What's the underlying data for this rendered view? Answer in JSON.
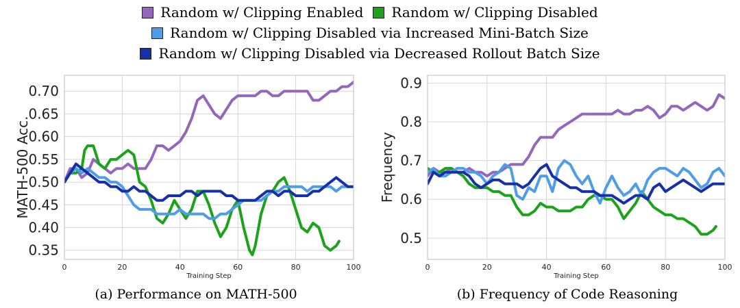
{
  "legend": {
    "rows": [
      [
        {
          "key": "enabled",
          "label": "Random w/ Clipping Enabled"
        },
        {
          "key": "disabled",
          "label": "Random w/ Clipping Disabled"
        }
      ],
      [
        {
          "key": "minibatch",
          "label": "Random w/ Clipping Disabled via Increased Mini-Batch Size"
        }
      ],
      [
        {
          "key": "rollout",
          "label": "Random w/ Clipping Disabled via Decreased Rollout Batch Size"
        }
      ]
    ]
  },
  "colors": {
    "enabled": "#9467bd",
    "disabled": "#1ca31c",
    "minibatch": "#4f9de8",
    "rollout": "#1530a8"
  },
  "chart_data": [
    {
      "type": "line",
      "caption": "(a) Performance on MATH-500",
      "xlabel": "Training Step",
      "ylabel": "MATH-500 Acc.",
      "xlim": [
        0,
        100
      ],
      "ylim": [
        0.33,
        0.735
      ],
      "xticks": [
        0,
        20,
        40,
        60,
        80,
        100
      ],
      "yticks": [
        0.35,
        0.4,
        0.45,
        0.5,
        0.55,
        0.6,
        0.65,
        0.7
      ],
      "ytick_labels": [
        "0.35",
        "0.40",
        "0.45",
        "0.50",
        "0.55",
        "0.60",
        "0.65",
        "0.70"
      ],
      "grid": true,
      "series": [
        {
          "key": "enabled",
          "x": [
            0,
            2,
            4,
            6,
            8,
            10,
            12,
            14,
            16,
            18,
            20,
            22,
            24,
            26,
            28,
            30,
            32,
            34,
            36,
            38,
            40,
            42,
            44,
            46,
            48,
            50,
            52,
            54,
            56,
            58,
            60,
            62,
            64,
            66,
            68,
            70,
            72,
            74,
            76,
            78,
            80,
            82,
            84,
            86,
            88,
            90,
            92,
            94,
            96,
            98,
            100
          ],
          "values": [
            0.5,
            0.53,
            0.53,
            0.51,
            0.52,
            0.55,
            0.54,
            0.53,
            0.52,
            0.53,
            0.53,
            0.54,
            0.53,
            0.53,
            0.53,
            0.55,
            0.58,
            0.58,
            0.57,
            0.58,
            0.59,
            0.61,
            0.64,
            0.68,
            0.69,
            0.67,
            0.65,
            0.64,
            0.66,
            0.68,
            0.69,
            0.69,
            0.69,
            0.69,
            0.7,
            0.7,
            0.69,
            0.69,
            0.7,
            0.7,
            0.7,
            0.7,
            0.7,
            0.68,
            0.68,
            0.69,
            0.7,
            0.7,
            0.71,
            0.71,
            0.72
          ]
        },
        {
          "key": "disabled",
          "x": [
            0,
            2,
            4,
            6,
            7,
            8,
            10,
            12,
            14,
            16,
            18,
            20,
            22,
            24,
            26,
            28,
            30,
            32,
            34,
            36,
            38,
            40,
            42,
            44,
            46,
            48,
            50,
            52,
            54,
            56,
            58,
            60,
            62,
            64,
            65,
            66,
            68,
            70,
            72,
            74,
            76,
            78,
            80,
            82,
            84,
            86,
            88,
            90,
            92,
            94,
            95
          ],
          "values": [
            0.5,
            0.52,
            0.52,
            0.53,
            0.57,
            0.58,
            0.58,
            0.54,
            0.53,
            0.55,
            0.55,
            0.56,
            0.57,
            0.56,
            0.5,
            0.49,
            0.46,
            0.42,
            0.41,
            0.43,
            0.46,
            0.44,
            0.42,
            0.44,
            0.48,
            0.48,
            0.45,
            0.41,
            0.38,
            0.4,
            0.44,
            0.46,
            0.4,
            0.35,
            0.34,
            0.36,
            0.43,
            0.47,
            0.48,
            0.5,
            0.51,
            0.48,
            0.44,
            0.4,
            0.39,
            0.41,
            0.4,
            0.36,
            0.35,
            0.36,
            0.37
          ]
        },
        {
          "key": "minibatch",
          "x": [
            0,
            2,
            4,
            6,
            8,
            10,
            12,
            14,
            16,
            18,
            20,
            22,
            24,
            26,
            28,
            30,
            32,
            34,
            36,
            38,
            40,
            42,
            44,
            46,
            48,
            50,
            52,
            54,
            56,
            58,
            60,
            62,
            64,
            66,
            68,
            70,
            72,
            74,
            76,
            78,
            80,
            82,
            84,
            86,
            88,
            90,
            92,
            94,
            96,
            98,
            100
          ],
          "values": [
            0.5,
            0.52,
            0.53,
            0.52,
            0.53,
            0.52,
            0.51,
            0.51,
            0.5,
            0.5,
            0.49,
            0.47,
            0.45,
            0.44,
            0.44,
            0.44,
            0.43,
            0.43,
            0.43,
            0.43,
            0.44,
            0.43,
            0.43,
            0.43,
            0.43,
            0.42,
            0.42,
            0.43,
            0.43,
            0.44,
            0.45,
            0.46,
            0.46,
            0.46,
            0.46,
            0.47,
            0.48,
            0.48,
            0.49,
            0.49,
            0.49,
            0.49,
            0.48,
            0.49,
            0.49,
            0.49,
            0.49,
            0.48,
            0.49,
            0.49,
            0.49
          ]
        },
        {
          "key": "rollout",
          "x": [
            0,
            2,
            4,
            6,
            8,
            10,
            12,
            14,
            16,
            18,
            20,
            22,
            24,
            26,
            28,
            30,
            32,
            34,
            36,
            38,
            40,
            42,
            44,
            46,
            48,
            50,
            52,
            54,
            56,
            58,
            60,
            62,
            64,
            66,
            68,
            70,
            72,
            74,
            76,
            78,
            80,
            82,
            84,
            86,
            88,
            90,
            92,
            94,
            96,
            98,
            100
          ],
          "values": [
            0.5,
            0.52,
            0.54,
            0.53,
            0.52,
            0.51,
            0.5,
            0.5,
            0.49,
            0.49,
            0.48,
            0.48,
            0.49,
            0.48,
            0.48,
            0.47,
            0.46,
            0.46,
            0.47,
            0.47,
            0.47,
            0.48,
            0.48,
            0.47,
            0.48,
            0.48,
            0.48,
            0.48,
            0.47,
            0.47,
            0.46,
            0.46,
            0.46,
            0.46,
            0.47,
            0.48,
            0.48,
            0.47,
            0.48,
            0.48,
            0.47,
            0.47,
            0.47,
            0.48,
            0.48,
            0.49,
            0.5,
            0.51,
            0.5,
            0.49,
            0.49
          ]
        }
      ]
    },
    {
      "type": "line",
      "caption": "(b) Frequency of Code Reasoning",
      "xlabel": "Training Step",
      "ylabel": "Frequency",
      "xlim": [
        0,
        100
      ],
      "ylim": [
        0.445,
        0.92
      ],
      "xticks": [
        0,
        20,
        40,
        60,
        80,
        100
      ],
      "yticks": [
        0.5,
        0.6,
        0.7,
        0.8,
        0.9
      ],
      "ytick_labels": [
        "0.5",
        "0.6",
        "0.7",
        "0.8",
        "0.9"
      ],
      "grid": true,
      "series": [
        {
          "key": "enabled",
          "x": [
            0,
            2,
            4,
            6,
            8,
            10,
            12,
            14,
            16,
            18,
            20,
            22,
            24,
            26,
            28,
            30,
            32,
            34,
            36,
            38,
            40,
            42,
            44,
            46,
            48,
            50,
            52,
            54,
            56,
            58,
            60,
            62,
            64,
            66,
            68,
            70,
            72,
            74,
            76,
            78,
            80,
            82,
            84,
            86,
            88,
            90,
            92,
            94,
            96,
            98,
            100
          ],
          "values": [
            0.66,
            0.68,
            0.67,
            0.67,
            0.68,
            0.67,
            0.67,
            0.68,
            0.67,
            0.67,
            0.66,
            0.67,
            0.67,
            0.68,
            0.69,
            0.69,
            0.69,
            0.71,
            0.74,
            0.76,
            0.76,
            0.76,
            0.78,
            0.79,
            0.8,
            0.81,
            0.82,
            0.82,
            0.82,
            0.82,
            0.82,
            0.82,
            0.83,
            0.82,
            0.82,
            0.83,
            0.83,
            0.84,
            0.83,
            0.81,
            0.82,
            0.84,
            0.84,
            0.83,
            0.84,
            0.85,
            0.84,
            0.83,
            0.84,
            0.87,
            0.86
          ]
        },
        {
          "key": "disabled",
          "x": [
            0,
            2,
            4,
            6,
            8,
            10,
            12,
            14,
            16,
            18,
            20,
            22,
            24,
            26,
            28,
            30,
            32,
            34,
            36,
            38,
            40,
            42,
            44,
            46,
            48,
            50,
            52,
            54,
            56,
            58,
            60,
            62,
            64,
            66,
            68,
            70,
            72,
            74,
            76,
            78,
            80,
            82,
            84,
            86,
            88,
            90,
            92,
            94,
            96,
            97
          ],
          "values": [
            0.68,
            0.67,
            0.67,
            0.68,
            0.68,
            0.67,
            0.66,
            0.64,
            0.63,
            0.63,
            0.63,
            0.62,
            0.62,
            0.61,
            0.61,
            0.58,
            0.56,
            0.56,
            0.57,
            0.59,
            0.58,
            0.58,
            0.57,
            0.57,
            0.57,
            0.58,
            0.58,
            0.6,
            0.61,
            0.61,
            0.6,
            0.6,
            0.58,
            0.55,
            0.57,
            0.59,
            0.62,
            0.6,
            0.58,
            0.57,
            0.56,
            0.56,
            0.55,
            0.55,
            0.54,
            0.53,
            0.51,
            0.51,
            0.52,
            0.53
          ]
        },
        {
          "key": "minibatch",
          "x": [
            0,
            2,
            4,
            6,
            8,
            10,
            12,
            14,
            16,
            18,
            20,
            22,
            24,
            26,
            28,
            30,
            32,
            34,
            36,
            38,
            40,
            42,
            44,
            46,
            48,
            50,
            52,
            54,
            56,
            58,
            60,
            62,
            64,
            66,
            68,
            70,
            72,
            74,
            76,
            78,
            80,
            82,
            84,
            86,
            88,
            90,
            92,
            94,
            96,
            98,
            100
          ],
          "values": [
            0.67,
            0.68,
            0.66,
            0.66,
            0.67,
            0.68,
            0.68,
            0.67,
            0.67,
            0.66,
            0.64,
            0.66,
            0.67,
            0.69,
            0.68,
            0.61,
            0.6,
            0.63,
            0.62,
            0.66,
            0.66,
            0.62,
            0.68,
            0.7,
            0.69,
            0.66,
            0.64,
            0.66,
            0.62,
            0.59,
            0.63,
            0.66,
            0.63,
            0.61,
            0.62,
            0.64,
            0.61,
            0.65,
            0.67,
            0.68,
            0.68,
            0.67,
            0.66,
            0.68,
            0.67,
            0.65,
            0.63,
            0.64,
            0.67,
            0.68,
            0.66
          ]
        },
        {
          "key": "rollout",
          "x": [
            0,
            2,
            4,
            6,
            8,
            10,
            12,
            14,
            16,
            18,
            20,
            22,
            24,
            26,
            28,
            30,
            32,
            34,
            36,
            38,
            40,
            42,
            44,
            46,
            48,
            50,
            52,
            54,
            56,
            58,
            60,
            62,
            64,
            66,
            68,
            70,
            72,
            74,
            76,
            78,
            80,
            82,
            84,
            86,
            88,
            90,
            92,
            94,
            96,
            98,
            100
          ],
          "values": [
            0.64,
            0.67,
            0.66,
            0.67,
            0.67,
            0.67,
            0.67,
            0.66,
            0.64,
            0.63,
            0.64,
            0.65,
            0.65,
            0.64,
            0.64,
            0.64,
            0.63,
            0.64,
            0.66,
            0.68,
            0.69,
            0.66,
            0.65,
            0.64,
            0.63,
            0.63,
            0.62,
            0.62,
            0.62,
            0.61,
            0.61,
            0.61,
            0.6,
            0.59,
            0.6,
            0.61,
            0.61,
            0.6,
            0.63,
            0.64,
            0.62,
            0.63,
            0.64,
            0.65,
            0.64,
            0.63,
            0.62,
            0.63,
            0.64,
            0.64,
            0.64
          ]
        }
      ]
    }
  ]
}
